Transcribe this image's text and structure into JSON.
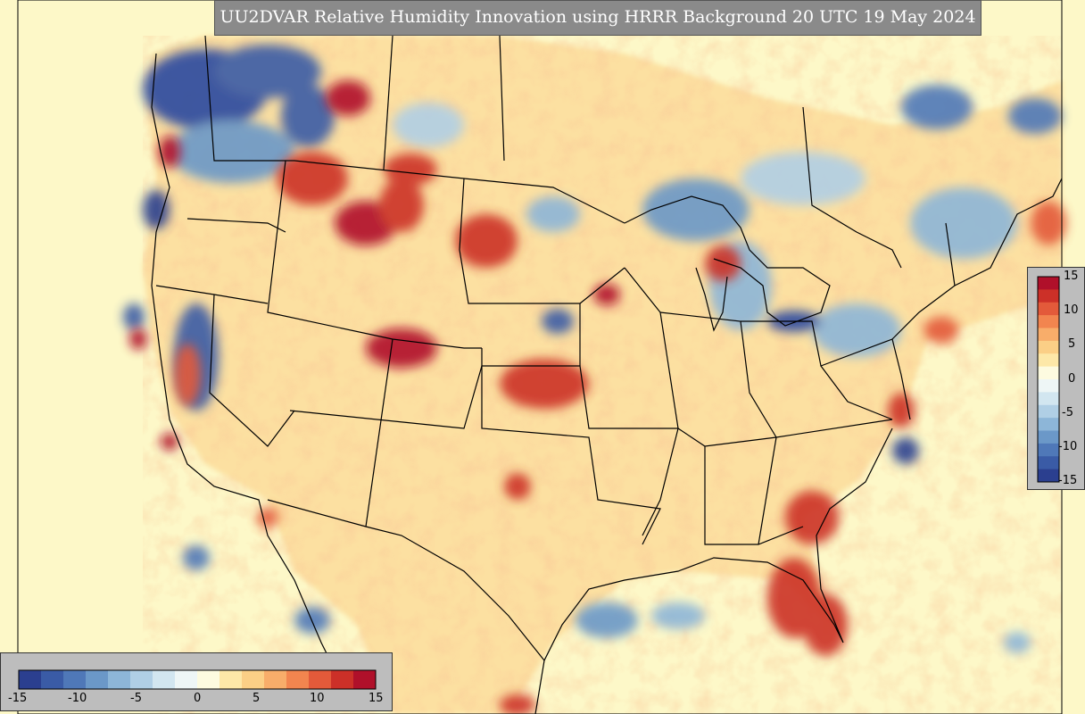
{
  "title": "UU2DVAR Relative Humidity Innovation using HRRR Background 20 UTC 19 May 2024",
  "colorbar": {
    "ticks": [
      "-15",
      "-10",
      "-5",
      "0",
      "5",
      "10",
      "15"
    ],
    "range": [
      -15,
      15
    ],
    "colors": [
      "#2b3f8f",
      "#3a5ba6",
      "#4f78b8",
      "#6b98c8",
      "#8db6d8",
      "#b0cfe5",
      "#d2e6f0",
      "#eef6f6",
      "#fdfbe0",
      "#fde8a8",
      "#fbcf86",
      "#f8ad6a",
      "#f2854f",
      "#e35a3a",
      "#cc3028",
      "#b0102a"
    ]
  },
  "map_region": "CONUS"
}
